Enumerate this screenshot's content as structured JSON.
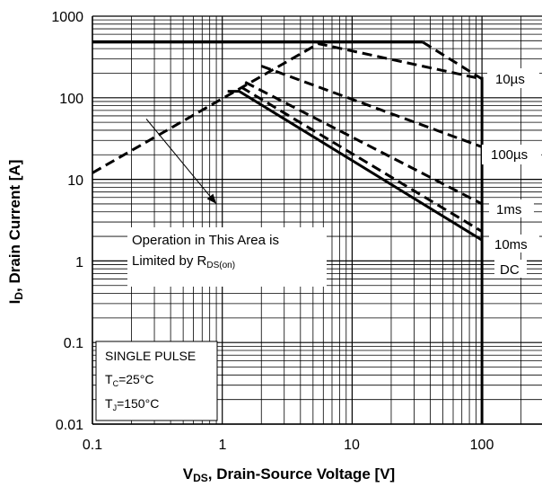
{
  "chart_data": {
    "type": "line",
    "title": "",
    "x_scale": "log",
    "y_scale": "log",
    "xlim": [
      0.1,
      100
    ],
    "ylim": [
      0.01,
      1000
    ],
    "grid": true,
    "x_ticks": [
      "0.1",
      "1",
      "10",
      "100"
    ],
    "y_ticks": [
      "0.01",
      "0.1",
      "1",
      "10",
      "100",
      "1000"
    ],
    "xlabel": {
      "pre": "V",
      "sub": "DS",
      "post": ", Drain-Source Voltage [V]"
    },
    "ylabel": {
      "pre": "I",
      "sub": "D",
      "post": ", Drain Current [A]"
    },
    "series": [
      {
        "name": "10µs",
        "style": "dashed",
        "x": [
          0.1,
          5.5,
          100
        ],
        "y": [
          12,
          460,
          170
        ]
      },
      {
        "name": "100µs",
        "style": "dashed",
        "x": [
          2,
          100
        ],
        "y": [
          245,
          25
        ]
      },
      {
        "name": "1ms",
        "style": "dashed",
        "x": [
          1.5,
          100
        ],
        "y": [
          155,
          5
        ]
      },
      {
        "name": "10ms",
        "style": "dashed",
        "x": [
          1.4,
          100
        ],
        "y": [
          135,
          2.3
        ]
      },
      {
        "name": "DC",
        "style": "solid",
        "x": [
          1.1,
          1.35,
          100
        ],
        "y": [
          120,
          120,
          1.8
        ]
      },
      {
        "name": "",
        "style": "solid",
        "x": [
          0.1,
          35
        ],
        "y": [
          480,
          480
        ]
      },
      {
        "name": "",
        "style": "dashed",
        "x": [
          35,
          100
        ],
        "y": [
          480,
          170
        ]
      },
      {
        "name": "",
        "style": "solid",
        "x": [
          100,
          100
        ],
        "y": [
          180,
          0.01
        ]
      }
    ],
    "annotation": {
      "line1": "Operation in This Area is",
      "line2_pre": "Limited by R",
      "line2_sub": "DS(on)",
      "arrow_from": [
        0.26,
        55
      ],
      "arrow_to": [
        0.9,
        5
      ]
    },
    "conditions": {
      "line1": "SINGLE PULSE",
      "line2": {
        "pre": "T",
        "sub": "C",
        "post": "=25°C"
      },
      "line3": {
        "pre": "T",
        "sub": "J",
        "post": "=150°C"
      }
    }
  }
}
